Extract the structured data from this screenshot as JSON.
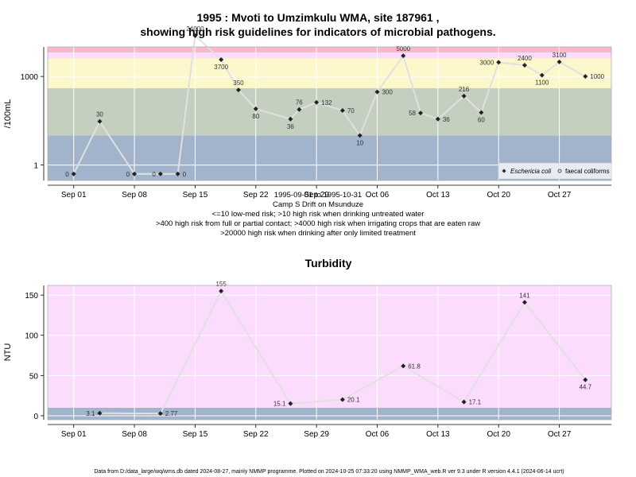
{
  "figure": {
    "title_line1": "1995 : Mvoti to Umzimkulu WMA, site 187961 ,",
    "title_line2": "showing high risk guidelines for indicators of microbial pathogens.",
    "subtitle_lines": [
      "1995-09-01 to 1995-10-31",
      "Camp S Drift on Msunduze",
      "<=10 low-med risk; >10 high risk when drinking untreated water",
      ">400 high risk from full or partial contact; >4000 high risk when irrigating crops that are eaten raw",
      ">20000 high risk when drinking after only limited treatment"
    ],
    "footer": "Data from D:/data_large/wq/wms.db dated 2024-08-27, mainly NMMP programme. Plotted on 2024-10-25 07:33:20 using NMMP_WMA_web.R ver 9.3 under R version 4.4.1 (2024-06-14 ucrt)"
  },
  "colors": {
    "band_blue": "#a2b3cc",
    "band_green": "#c4cfc0",
    "band_yellow": "#fdf7cc",
    "band_pink": "#fcdcfc",
    "band_red": "#f8b8c8",
    "grid": "#ffffff",
    "line": "#e0e0e0",
    "marker": "#222222"
  },
  "chart_data": [
    {
      "type": "line",
      "title": "",
      "xlabel": "",
      "ylabel": "/100mL",
      "y_scale": "log10",
      "ylim": [
        0.3,
        10000
      ],
      "xlim": [
        "1995-08-29",
        "1995-11-02"
      ],
      "y_tick_labels": [
        "1",
        "1000"
      ],
      "y_ticks": [
        1,
        1000
      ],
      "x_tick_labels": [
        "Sep 01",
        "Sep 08",
        "Sep 15",
        "Sep 22",
        "Sep 29",
        "Oct 06",
        "Oct 13",
        "Oct 20",
        "Oct 27"
      ],
      "x_ticks": [
        "1995-09-01",
        "1995-09-08",
        "1995-09-15",
        "1995-09-22",
        "1995-09-29",
        "1995-10-06",
        "1995-10-13",
        "1995-10-20",
        "1995-10-27"
      ],
      "risk_bands": [
        {
          "from": 0.3,
          "to": 10,
          "color": "band_blue"
        },
        {
          "from": 10,
          "to": 400,
          "color": "band_green"
        },
        {
          "from": 400,
          "to": 4000,
          "color": "band_yellow"
        },
        {
          "from": 4000,
          "to": 20000,
          "color": "band_pink"
        },
        {
          "from": 20000,
          "to": 10000,
          "color": "band_red"
        }
      ],
      "grid": true,
      "legend_position": "bottom-right",
      "legend": [
        "Eschericia coli",
        "faecal coliforms"
      ],
      "series": [
        {
          "name": "Eschericia coli",
          "points": [
            {
              "x": "1995-09-01",
              "y": 0.5,
              "label": "0",
              "label_pos": "left"
            },
            {
              "x": "1995-09-04",
              "y": 30,
              "label": "30",
              "label_pos": "above"
            },
            {
              "x": "1995-09-08",
              "y": 0.5,
              "label": "0",
              "label_pos": "left"
            },
            {
              "x": "1995-09-11",
              "y": 0.5,
              "label": "0",
              "label_pos": "left"
            },
            {
              "x": "1995-09-13",
              "y": 0.5,
              "label": "0",
              "label_pos": "right"
            },
            {
              "x": "1995-09-15",
              "y": 24000,
              "label": "24000",
              "label_pos": "above"
            },
            {
              "x": "1995-09-18",
              "y": 3700,
              "label": "3700",
              "label_pos": "below"
            },
            {
              "x": "1995-09-20",
              "y": 350,
              "label": "350",
              "label_pos": "above"
            },
            {
              "x": "1995-09-22",
              "y": 80,
              "label": "80",
              "label_pos": "below"
            },
            {
              "x": "1995-09-26",
              "y": 36,
              "label": "36",
              "label_pos": "below"
            },
            {
              "x": "1995-09-27",
              "y": 76,
              "label": "76",
              "label_pos": "above"
            },
            {
              "x": "1995-09-29",
              "y": 132,
              "label": "132",
              "label_pos": "right"
            },
            {
              "x": "1995-10-02",
              "y": 70,
              "label": "70",
              "label_pos": "right"
            },
            {
              "x": "1995-10-04",
              "y": 10,
              "label": "10",
              "label_pos": "below"
            },
            {
              "x": "1995-10-06",
              "y": 300,
              "label": "300",
              "label_pos": "right"
            },
            {
              "x": "1995-10-09",
              "y": 5000,
              "label": "5000",
              "label_pos": "above"
            },
            {
              "x": "1995-10-11",
              "y": 58,
              "label": "58",
              "label_pos": "left"
            },
            {
              "x": "1995-10-13",
              "y": 36,
              "label": "36",
              "label_pos": "right"
            },
            {
              "x": "1995-10-16",
              "y": 216,
              "label": "216",
              "label_pos": "above"
            },
            {
              "x": "1995-10-18",
              "y": 60,
              "label": "60",
              "label_pos": "below"
            },
            {
              "x": "1995-10-20",
              "y": 3000,
              "label": "3000",
              "label_pos": "left"
            },
            {
              "x": "1995-10-23",
              "y": 2400,
              "label": "2400",
              "label_pos": "above"
            },
            {
              "x": "1995-10-25",
              "y": 1100,
              "label": "1100",
              "label_pos": "below"
            },
            {
              "x": "1995-10-27",
              "y": 3100,
              "label": "3100",
              "label_pos": "above"
            },
            {
              "x": "1995-10-30",
              "y": 1000,
              "label": "1000",
              "label_pos": "right"
            }
          ]
        }
      ]
    },
    {
      "type": "line",
      "title": "Turbidity",
      "xlabel": "",
      "ylabel": "NTU",
      "ylim": [
        -5,
        162
      ],
      "xlim": [
        "1995-08-29",
        "1995-11-02"
      ],
      "y_ticks": [
        0,
        50,
        100,
        150
      ],
      "y_tick_labels": [
        "0",
        "50",
        "100",
        "150"
      ],
      "x_tick_labels": [
        "Sep 01",
        "Sep 08",
        "Sep 15",
        "Sep 22",
        "Sep 29",
        "Oct 06",
        "Oct 13",
        "Oct 20",
        "Oct 27"
      ],
      "x_ticks": [
        "1995-09-01",
        "1995-09-08",
        "1995-09-15",
        "1995-09-22",
        "1995-09-29",
        "1995-10-06",
        "1995-10-13",
        "1995-10-20",
        "1995-10-27"
      ],
      "risk_bands": [
        {
          "from": -5,
          "to": 10,
          "color": "band_blue"
        },
        {
          "from": 10,
          "to": 162,
          "color": "band_pink"
        }
      ],
      "grid": true,
      "series": [
        {
          "name": "",
          "points": [
            {
              "x": "1995-09-04",
              "y": 3.1,
              "label": "3.1",
              "label_pos": "left"
            },
            {
              "x": "1995-09-11",
              "y": 2.77,
              "label": "2.77",
              "label_pos": "right"
            },
            {
              "x": "1995-09-18",
              "y": 155,
              "label": "155",
              "label_pos": "above"
            },
            {
              "x": "1995-09-26",
              "y": 15.1,
              "label": "15.1",
              "label_pos": "left"
            },
            {
              "x": "1995-10-02",
              "y": 20.1,
              "label": "20.1",
              "label_pos": "right"
            },
            {
              "x": "1995-10-09",
              "y": 61.8,
              "label": "61.8",
              "label_pos": "right"
            },
            {
              "x": "1995-10-16",
              "y": 17.1,
              "label": "17.1",
              "label_pos": "right"
            },
            {
              "x": "1995-10-23",
              "y": 141,
              "label": "141",
              "label_pos": "above"
            },
            {
              "x": "1995-10-30",
              "y": 44.7,
              "label": "44.7",
              "label_pos": "below"
            }
          ]
        }
      ]
    }
  ]
}
